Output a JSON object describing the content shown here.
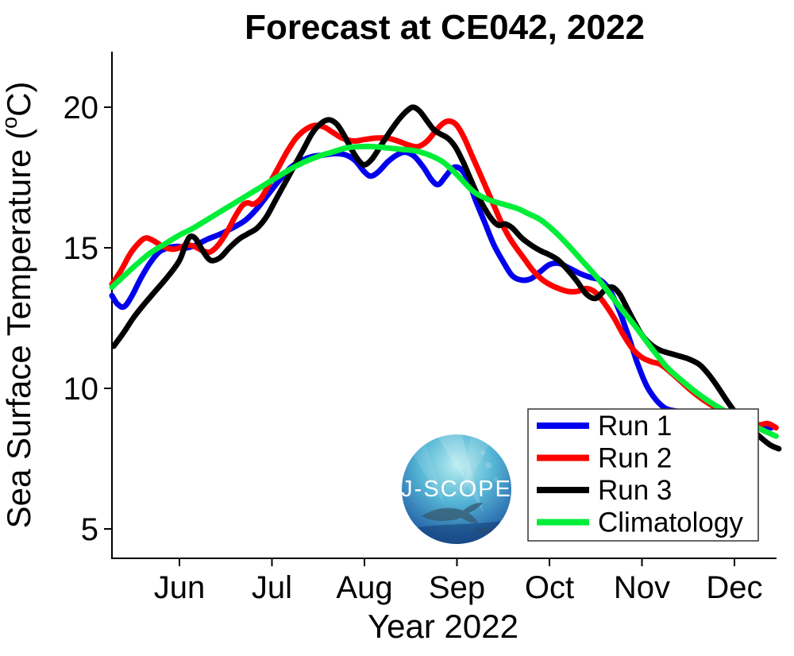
{
  "title": "Forecast at CE042, 2022",
  "axes": {
    "xlabel": "Year 2022",
    "ylabel_main": "Sea Surface Temperature (",
    "ylabel_sup": "o",
    "ylabel_close": "C)",
    "x_ticks": [
      "Jun",
      "Jul",
      "Aug",
      "Sep",
      "Oct",
      "Nov",
      "Dec"
    ],
    "y_ticks": [
      5,
      10,
      15,
      20
    ]
  },
  "logo": {
    "text": "J-SCOPE"
  },
  "chart_data": {
    "type": "line",
    "title": "Forecast at CE042, 2022",
    "xlabel": "Year 2022",
    "ylabel": "Sea Surface Temperature (°C)",
    "x_unit": "decimal month of 2022 (6.0 = Jun 1, 7.0 = Jul 1, ...)",
    "xlim": [
      5.27,
      12.51
    ],
    "ylim": [
      4.0,
      22.0
    ],
    "grid": false,
    "legend_position": "lower right",
    "series": [
      {
        "name": "Run 1",
        "color": "#0000ee",
        "points": [
          [
            5.27,
            13.3
          ],
          [
            5.33,
            13.0
          ],
          [
            5.4,
            12.9
          ],
          [
            5.48,
            13.25
          ],
          [
            5.58,
            13.9
          ],
          [
            5.68,
            14.45
          ],
          [
            5.78,
            14.85
          ],
          [
            5.88,
            15.0
          ],
          [
            5.98,
            15.05
          ],
          [
            6.08,
            15.0
          ],
          [
            6.18,
            15.1
          ],
          [
            6.3,
            15.3
          ],
          [
            6.45,
            15.5
          ],
          [
            6.6,
            15.75
          ],
          [
            6.72,
            16.0
          ],
          [
            6.84,
            16.4
          ],
          [
            6.96,
            16.9
          ],
          [
            7.08,
            17.4
          ],
          [
            7.2,
            17.85
          ],
          [
            7.32,
            18.1
          ],
          [
            7.44,
            18.25
          ],
          [
            7.56,
            18.3
          ],
          [
            7.68,
            18.35
          ],
          [
            7.8,
            18.3
          ],
          [
            7.9,
            18.1
          ],
          [
            8.0,
            17.7
          ],
          [
            8.07,
            17.55
          ],
          [
            8.15,
            17.7
          ],
          [
            8.25,
            18.05
          ],
          [
            8.35,
            18.3
          ],
          [
            8.44,
            18.4
          ],
          [
            8.54,
            18.25
          ],
          [
            8.64,
            17.85
          ],
          [
            8.73,
            17.4
          ],
          [
            8.8,
            17.25
          ],
          [
            8.88,
            17.55
          ],
          [
            8.96,
            17.85
          ],
          [
            9.04,
            17.8
          ],
          [
            9.12,
            17.4
          ],
          [
            9.2,
            16.7
          ],
          [
            9.3,
            15.9
          ],
          [
            9.4,
            15.1
          ],
          [
            9.5,
            14.5
          ],
          [
            9.6,
            14.0
          ],
          [
            9.7,
            13.85
          ],
          [
            9.8,
            13.9
          ],
          [
            9.9,
            14.15
          ],
          [
            10.0,
            14.4
          ],
          [
            10.1,
            14.45
          ],
          [
            10.2,
            14.3
          ],
          [
            10.32,
            14.1
          ],
          [
            10.44,
            13.95
          ],
          [
            10.55,
            13.85
          ],
          [
            10.65,
            13.5
          ],
          [
            10.75,
            12.8
          ],
          [
            10.85,
            11.9
          ],
          [
            10.95,
            10.9
          ],
          [
            11.05,
            10.1
          ],
          [
            11.15,
            9.6
          ],
          [
            11.25,
            9.3
          ],
          [
            11.35,
            9.2
          ],
          [
            11.5,
            9.15
          ],
          [
            11.65,
            9.1
          ],
          [
            11.85,
            9.0
          ],
          [
            12.05,
            8.85
          ],
          [
            12.25,
            8.7
          ],
          [
            12.4,
            8.6
          ]
        ]
      },
      {
        "name": "Run 2",
        "color": "#ff0000",
        "points": [
          [
            5.27,
            13.7
          ],
          [
            5.37,
            14.2
          ],
          [
            5.47,
            14.8
          ],
          [
            5.57,
            15.2
          ],
          [
            5.64,
            15.35
          ],
          [
            5.72,
            15.25
          ],
          [
            5.82,
            15.05
          ],
          [
            5.92,
            14.95
          ],
          [
            6.0,
            15.0
          ],
          [
            6.08,
            15.1
          ],
          [
            6.16,
            15.05
          ],
          [
            6.25,
            14.9
          ],
          [
            6.33,
            14.85
          ],
          [
            6.42,
            15.1
          ],
          [
            6.52,
            15.6
          ],
          [
            6.6,
            16.1
          ],
          [
            6.68,
            16.5
          ],
          [
            6.74,
            16.6
          ],
          [
            6.8,
            16.55
          ],
          [
            6.88,
            16.75
          ],
          [
            6.96,
            17.2
          ],
          [
            7.06,
            17.8
          ],
          [
            7.16,
            18.4
          ],
          [
            7.26,
            18.9
          ],
          [
            7.36,
            19.2
          ],
          [
            7.46,
            19.35
          ],
          [
            7.56,
            19.3
          ],
          [
            7.66,
            19.1
          ],
          [
            7.76,
            18.9
          ],
          [
            7.88,
            18.8
          ],
          [
            8.0,
            18.85
          ],
          [
            8.12,
            18.9
          ],
          [
            8.24,
            18.9
          ],
          [
            8.36,
            18.8
          ],
          [
            8.48,
            18.65
          ],
          [
            8.58,
            18.6
          ],
          [
            8.68,
            18.8
          ],
          [
            8.78,
            19.2
          ],
          [
            8.86,
            19.45
          ],
          [
            8.93,
            19.5
          ],
          [
            9.0,
            19.35
          ],
          [
            9.08,
            18.9
          ],
          [
            9.16,
            18.3
          ],
          [
            9.24,
            17.7
          ],
          [
            9.32,
            17.1
          ],
          [
            9.4,
            16.5
          ],
          [
            9.48,
            15.9
          ],
          [
            9.56,
            15.4
          ],
          [
            9.64,
            15.0
          ],
          [
            9.73,
            14.6
          ],
          [
            9.82,
            14.2
          ],
          [
            9.91,
            13.9
          ],
          [
            10.0,
            13.7
          ],
          [
            10.1,
            13.55
          ],
          [
            10.2,
            13.45
          ],
          [
            10.3,
            13.45
          ],
          [
            10.4,
            13.55
          ],
          [
            10.5,
            13.4
          ],
          [
            10.6,
            13.0
          ],
          [
            10.7,
            12.5
          ],
          [
            10.8,
            11.9
          ],
          [
            10.9,
            11.4
          ],
          [
            11.0,
            11.1
          ],
          [
            11.1,
            10.95
          ],
          [
            11.2,
            10.85
          ],
          [
            11.3,
            10.6
          ],
          [
            11.42,
            10.25
          ],
          [
            11.54,
            9.9
          ],
          [
            11.66,
            9.6
          ],
          [
            11.78,
            9.35
          ],
          [
            11.9,
            9.15
          ],
          [
            12.02,
            8.95
          ],
          [
            12.14,
            8.8
          ],
          [
            12.26,
            8.7
          ],
          [
            12.36,
            8.75
          ],
          [
            12.45,
            8.6
          ]
        ]
      },
      {
        "name": "Run 3",
        "color": "#000000",
        "points": [
          [
            5.29,
            11.5
          ],
          [
            5.4,
            12.0
          ],
          [
            5.5,
            12.5
          ],
          [
            5.62,
            13.0
          ],
          [
            5.75,
            13.5
          ],
          [
            5.88,
            14.0
          ],
          [
            6.0,
            14.55
          ],
          [
            6.07,
            15.15
          ],
          [
            6.12,
            15.4
          ],
          [
            6.18,
            15.3
          ],
          [
            6.26,
            14.85
          ],
          [
            6.34,
            14.55
          ],
          [
            6.44,
            14.65
          ],
          [
            6.54,
            15.0
          ],
          [
            6.64,
            15.3
          ],
          [
            6.74,
            15.5
          ],
          [
            6.84,
            15.7
          ],
          [
            6.94,
            16.1
          ],
          [
            7.04,
            16.7
          ],
          [
            7.14,
            17.3
          ],
          [
            7.24,
            17.9
          ],
          [
            7.34,
            18.5
          ],
          [
            7.44,
            19.1
          ],
          [
            7.54,
            19.45
          ],
          [
            7.62,
            19.55
          ],
          [
            7.7,
            19.4
          ],
          [
            7.78,
            19.0
          ],
          [
            7.86,
            18.5
          ],
          [
            7.94,
            18.1
          ],
          [
            8.0,
            17.95
          ],
          [
            8.08,
            18.15
          ],
          [
            8.18,
            18.65
          ],
          [
            8.28,
            19.15
          ],
          [
            8.38,
            19.6
          ],
          [
            8.47,
            19.9
          ],
          [
            8.53,
            20.0
          ],
          [
            8.6,
            19.85
          ],
          [
            8.68,
            19.5
          ],
          [
            8.75,
            19.2
          ],
          [
            8.82,
            19.05
          ],
          [
            8.9,
            18.9
          ],
          [
            8.98,
            18.6
          ],
          [
            9.06,
            18.1
          ],
          [
            9.14,
            17.5
          ],
          [
            9.22,
            16.9
          ],
          [
            9.3,
            16.4
          ],
          [
            9.38,
            16.0
          ],
          [
            9.45,
            15.8
          ],
          [
            9.52,
            15.85
          ],
          [
            9.6,
            15.7
          ],
          [
            9.7,
            15.35
          ],
          [
            9.8,
            15.1
          ],
          [
            9.9,
            14.9
          ],
          [
            10.0,
            14.75
          ],
          [
            10.1,
            14.55
          ],
          [
            10.2,
            14.2
          ],
          [
            10.3,
            13.8
          ],
          [
            10.4,
            13.35
          ],
          [
            10.5,
            13.2
          ],
          [
            10.6,
            13.5
          ],
          [
            10.68,
            13.6
          ],
          [
            10.76,
            13.35
          ],
          [
            10.84,
            12.85
          ],
          [
            10.92,
            12.35
          ],
          [
            11.0,
            11.9
          ],
          [
            11.1,
            11.55
          ],
          [
            11.2,
            11.35
          ],
          [
            11.35,
            11.2
          ],
          [
            11.5,
            11.05
          ],
          [
            11.62,
            10.85
          ],
          [
            11.72,
            10.5
          ],
          [
            11.82,
            10.05
          ],
          [
            11.92,
            9.55
          ],
          [
            12.02,
            9.1
          ],
          [
            12.12,
            8.75
          ],
          [
            12.25,
            8.35
          ],
          [
            12.38,
            8.0
          ],
          [
            12.48,
            7.85
          ]
        ]
      },
      {
        "name": "Climatology",
        "color": "#00ee38",
        "points": [
          [
            5.27,
            13.6
          ],
          [
            5.4,
            14.0
          ],
          [
            5.55,
            14.45
          ],
          [
            5.7,
            14.85
          ],
          [
            5.85,
            15.15
          ],
          [
            6.0,
            15.45
          ],
          [
            6.15,
            15.7
          ],
          [
            6.3,
            16.0
          ],
          [
            6.45,
            16.3
          ],
          [
            6.6,
            16.6
          ],
          [
            6.75,
            16.9
          ],
          [
            6.9,
            17.2
          ],
          [
            7.05,
            17.5
          ],
          [
            7.2,
            17.8
          ],
          [
            7.35,
            18.05
          ],
          [
            7.5,
            18.25
          ],
          [
            7.65,
            18.4
          ],
          [
            7.8,
            18.55
          ],
          [
            7.95,
            18.6
          ],
          [
            8.1,
            18.6
          ],
          [
            8.25,
            18.55
          ],
          [
            8.4,
            18.5
          ],
          [
            8.55,
            18.45
          ],
          [
            8.7,
            18.3
          ],
          [
            8.85,
            18.05
          ],
          [
            9.0,
            17.6
          ],
          [
            9.1,
            17.25
          ],
          [
            9.2,
            16.95
          ],
          [
            9.35,
            16.7
          ],
          [
            9.5,
            16.55
          ],
          [
            9.65,
            16.4
          ],
          [
            9.78,
            16.2
          ],
          [
            9.9,
            16.0
          ],
          [
            10.05,
            15.6
          ],
          [
            10.2,
            15.1
          ],
          [
            10.35,
            14.55
          ],
          [
            10.5,
            14.0
          ],
          [
            10.62,
            13.5
          ],
          [
            10.76,
            12.9
          ],
          [
            10.93,
            12.2
          ],
          [
            11.1,
            11.45
          ],
          [
            11.27,
            10.75
          ],
          [
            11.44,
            10.25
          ],
          [
            11.61,
            9.8
          ],
          [
            11.79,
            9.4
          ],
          [
            11.95,
            9.1
          ],
          [
            12.1,
            8.85
          ],
          [
            12.25,
            8.6
          ],
          [
            12.38,
            8.4
          ],
          [
            12.45,
            8.3
          ]
        ]
      }
    ]
  }
}
